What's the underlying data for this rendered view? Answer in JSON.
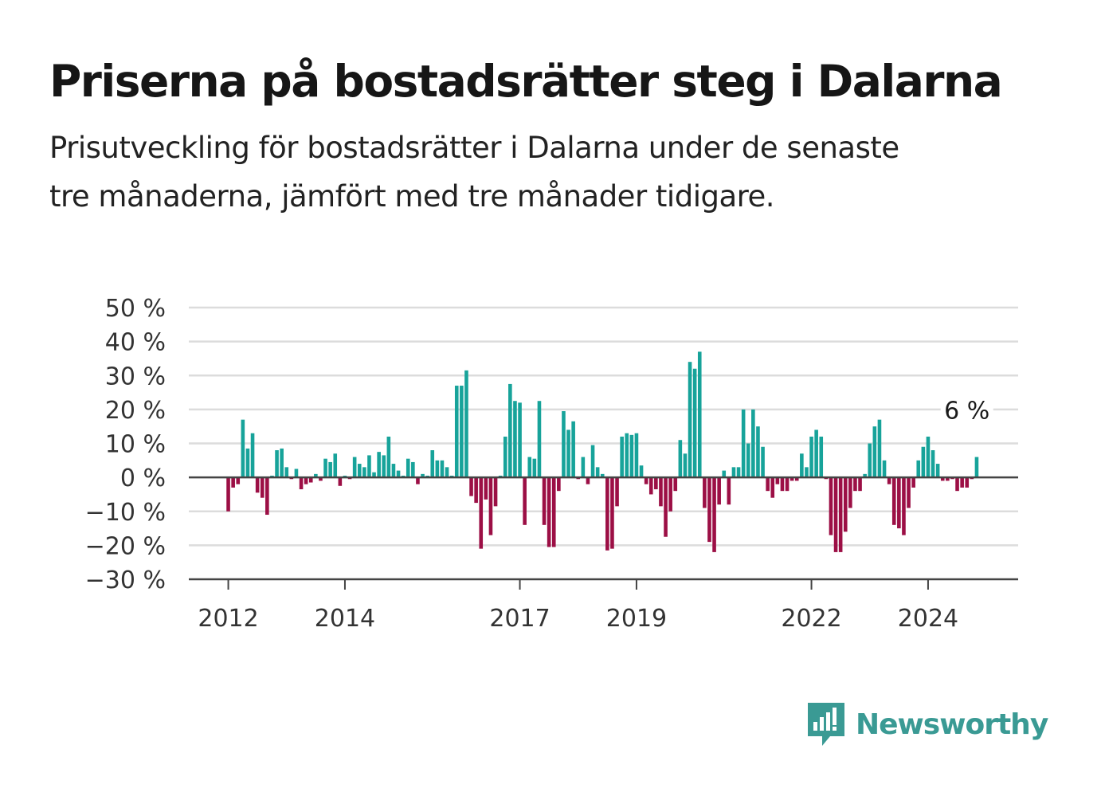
{
  "title": "Priserna på bostadsrätter steg i Dalarna",
  "subtitle": "Prisutveckling för bostadsrätter i Dalarna under de senaste tre månaderna, jämfört med tre månader tidigare.",
  "brand": {
    "name": "Newsworthy",
    "color": "#3a9a94"
  },
  "colors": {
    "positive": "#17a39a",
    "negative": "#9c0f45",
    "grid": "#dcdcdc",
    "zero": "#444444"
  },
  "chart_data": {
    "type": "bar",
    "title": "Priserna på bostadsrätter steg i Dalarna",
    "xlabel": "",
    "ylabel": "",
    "ylim": [
      -30,
      50
    ],
    "grid": true,
    "y_ticks": [
      -30,
      -20,
      -10,
      0,
      10,
      20,
      30,
      40,
      50
    ],
    "y_tick_labels": [
      "−30 %",
      "−20 %",
      "−10 %",
      "0 %",
      "10 %",
      "20 %",
      "30 %",
      "40 %",
      "50 %"
    ],
    "x_tick_labels": [
      {
        "label": "2012",
        "x": "2012-01"
      },
      {
        "label": "2014",
        "x": "2014-01"
      },
      {
        "label": "2017",
        "x": "2017-01"
      },
      {
        "label": "2019",
        "x": "2019-01"
      },
      {
        "label": "2022",
        "x": "2022-01"
      },
      {
        "label": "2024",
        "x": "2024-01"
      }
    ],
    "annotation": {
      "text": "6 %",
      "x": "2024-09",
      "value": 6
    },
    "values": [
      {
        "x": "2012-01",
        "value": -10
      },
      {
        "x": "2012-02",
        "value": -3
      },
      {
        "x": "2012-03",
        "value": -2
      },
      {
        "x": "2012-04",
        "value": 17
      },
      {
        "x": "2012-05",
        "value": 8.5
      },
      {
        "x": "2012-06",
        "value": 13
      },
      {
        "x": "2012-07",
        "value": -4.5
      },
      {
        "x": "2012-08",
        "value": -6
      },
      {
        "x": "2012-09",
        "value": -11
      },
      {
        "x": "2012-10",
        "value": 0.5
      },
      {
        "x": "2012-11",
        "value": 8
      },
      {
        "x": "2012-12",
        "value": 8.5
      },
      {
        "x": "2013-01",
        "value": 3
      },
      {
        "x": "2013-02",
        "value": -0.5
      },
      {
        "x": "2013-03",
        "value": 2.5
      },
      {
        "x": "2013-04",
        "value": -3.5
      },
      {
        "x": "2013-05",
        "value": -2
      },
      {
        "x": "2013-06",
        "value": -1.5
      },
      {
        "x": "2013-07",
        "value": 1
      },
      {
        "x": "2013-08",
        "value": -1
      },
      {
        "x": "2013-09",
        "value": 5.5
      },
      {
        "x": "2013-10",
        "value": 4.5
      },
      {
        "x": "2013-11",
        "value": 7
      },
      {
        "x": "2013-12",
        "value": -2.5
      },
      {
        "x": "2014-01",
        "value": 0.5
      },
      {
        "x": "2014-02",
        "value": -0.5
      },
      {
        "x": "2014-03",
        "value": 6
      },
      {
        "x": "2014-04",
        "value": 4
      },
      {
        "x": "2014-05",
        "value": 3
      },
      {
        "x": "2014-06",
        "value": 6.5
      },
      {
        "x": "2014-07",
        "value": 1.5
      },
      {
        "x": "2014-08",
        "value": 7.5
      },
      {
        "x": "2014-09",
        "value": 6.5
      },
      {
        "x": "2014-10",
        "value": 12
      },
      {
        "x": "2014-11",
        "value": 4
      },
      {
        "x": "2014-12",
        "value": 2
      },
      {
        "x": "2015-01",
        "value": 0.5
      },
      {
        "x": "2015-02",
        "value": 5.5
      },
      {
        "x": "2015-03",
        "value": 4.5
      },
      {
        "x": "2015-04",
        "value": -2
      },
      {
        "x": "2015-05",
        "value": 1
      },
      {
        "x": "2015-06",
        "value": 0.5
      },
      {
        "x": "2015-07",
        "value": 8
      },
      {
        "x": "2015-08",
        "value": 5
      },
      {
        "x": "2015-09",
        "value": 5
      },
      {
        "x": "2015-10",
        "value": 3
      },
      {
        "x": "2015-11",
        "value": 0.5
      },
      {
        "x": "2015-12",
        "value": 27
      },
      {
        "x": "2016-01",
        "value": 27
      },
      {
        "x": "2016-02",
        "value": 31.5
      },
      {
        "x": "2016-03",
        "value": -5.5
      },
      {
        "x": "2016-04",
        "value": -7.5
      },
      {
        "x": "2016-05",
        "value": -21
      },
      {
        "x": "2016-06",
        "value": -6.5
      },
      {
        "x": "2016-07",
        "value": -17
      },
      {
        "x": "2016-08",
        "value": -8.5
      },
      {
        "x": "2016-09",
        "value": 0.5
      },
      {
        "x": "2016-10",
        "value": 12
      },
      {
        "x": "2016-11",
        "value": 27.5
      },
      {
        "x": "2016-12",
        "value": 22.5
      },
      {
        "x": "2017-01",
        "value": 22
      },
      {
        "x": "2017-02",
        "value": -14
      },
      {
        "x": "2017-03",
        "value": 6
      },
      {
        "x": "2017-04",
        "value": 5.5
      },
      {
        "x": "2017-05",
        "value": 22.5
      },
      {
        "x": "2017-06",
        "value": -14
      },
      {
        "x": "2017-07",
        "value": -20.5
      },
      {
        "x": "2017-08",
        "value": -20.5
      },
      {
        "x": "2017-09",
        "value": -4
      },
      {
        "x": "2017-10",
        "value": 19.5
      },
      {
        "x": "2017-11",
        "value": 14
      },
      {
        "x": "2017-12",
        "value": 16.5
      },
      {
        "x": "2018-01",
        "value": -0.5
      },
      {
        "x": "2018-02",
        "value": 6
      },
      {
        "x": "2018-03",
        "value": -2
      },
      {
        "x": "2018-04",
        "value": 9.5
      },
      {
        "x": "2018-05",
        "value": 3
      },
      {
        "x": "2018-06",
        "value": 1
      },
      {
        "x": "2018-07",
        "value": -21.5
      },
      {
        "x": "2018-08",
        "value": -21
      },
      {
        "x": "2018-09",
        "value": -8.5
      },
      {
        "x": "2018-10",
        "value": 12
      },
      {
        "x": "2018-11",
        "value": 13
      },
      {
        "x": "2018-12",
        "value": 12.5
      },
      {
        "x": "2019-01",
        "value": 13
      },
      {
        "x": "2019-02",
        "value": 3.5
      },
      {
        "x": "2019-03",
        "value": -2
      },
      {
        "x": "2019-04",
        "value": -5
      },
      {
        "x": "2019-05",
        "value": -3.5
      },
      {
        "x": "2019-06",
        "value": -8.5
      },
      {
        "x": "2019-07",
        "value": -17.5
      },
      {
        "x": "2019-08",
        "value": -10
      },
      {
        "x": "2019-09",
        "value": -4
      },
      {
        "x": "2019-10",
        "value": 11
      },
      {
        "x": "2019-11",
        "value": 7
      },
      {
        "x": "2019-12",
        "value": 34
      },
      {
        "x": "2020-01",
        "value": 32
      },
      {
        "x": "2020-02",
        "value": 37
      },
      {
        "x": "2020-03",
        "value": -9
      },
      {
        "x": "2020-04",
        "value": -19
      },
      {
        "x": "2020-05",
        "value": -22
      },
      {
        "x": "2020-06",
        "value": -8
      },
      {
        "x": "2020-07",
        "value": 2
      },
      {
        "x": "2020-08",
        "value": -8
      },
      {
        "x": "2020-09",
        "value": 3
      },
      {
        "x": "2020-10",
        "value": 3
      },
      {
        "x": "2020-11",
        "value": 20
      },
      {
        "x": "2020-12",
        "value": 10
      },
      {
        "x": "2021-01",
        "value": 20
      },
      {
        "x": "2021-02",
        "value": 15
      },
      {
        "x": "2021-03",
        "value": 9
      },
      {
        "x": "2021-04",
        "value": -4
      },
      {
        "x": "2021-05",
        "value": -6
      },
      {
        "x": "2021-06",
        "value": -2
      },
      {
        "x": "2021-07",
        "value": -4
      },
      {
        "x": "2021-08",
        "value": -4
      },
      {
        "x": "2021-09",
        "value": -1
      },
      {
        "x": "2021-10",
        "value": -1
      },
      {
        "x": "2021-11",
        "value": 7
      },
      {
        "x": "2021-12",
        "value": 3
      },
      {
        "x": "2022-01",
        "value": 12
      },
      {
        "x": "2022-02",
        "value": 14
      },
      {
        "x": "2022-03",
        "value": 12
      },
      {
        "x": "2022-04",
        "value": -0.5
      },
      {
        "x": "2022-05",
        "value": -17
      },
      {
        "x": "2022-06",
        "value": -22
      },
      {
        "x": "2022-07",
        "value": -22
      },
      {
        "x": "2022-08",
        "value": -16
      },
      {
        "x": "2022-09",
        "value": -9
      },
      {
        "x": "2022-10",
        "value": -4
      },
      {
        "x": "2022-11",
        "value": -4
      },
      {
        "x": "2022-12",
        "value": 1
      },
      {
        "x": "2023-01",
        "value": 10
      },
      {
        "x": "2023-02",
        "value": 15
      },
      {
        "x": "2023-03",
        "value": 17
      },
      {
        "x": "2023-04",
        "value": 5
      },
      {
        "x": "2023-05",
        "value": -2
      },
      {
        "x": "2023-06",
        "value": -14
      },
      {
        "x": "2023-07",
        "value": -15
      },
      {
        "x": "2023-08",
        "value": -17
      },
      {
        "x": "2023-09",
        "value": -9
      },
      {
        "x": "2023-10",
        "value": -3
      },
      {
        "x": "2023-11",
        "value": 5
      },
      {
        "x": "2023-12",
        "value": 9
      },
      {
        "x": "2024-01",
        "value": 12
      },
      {
        "x": "2024-02",
        "value": 8
      },
      {
        "x": "2024-03",
        "value": 4
      },
      {
        "x": "2024-04",
        "value": -1
      },
      {
        "x": "2024-05",
        "value": -1
      },
      {
        "x": "2024-06",
        "value": -0.5
      },
      {
        "x": "2024-07",
        "value": -4
      },
      {
        "x": "2024-08",
        "value": -3
      },
      {
        "x": "2024-09",
        "value": -3
      },
      {
        "x": "2024-10",
        "value": -0.5
      },
      {
        "x": "2024-11",
        "value": 6
      }
    ]
  }
}
